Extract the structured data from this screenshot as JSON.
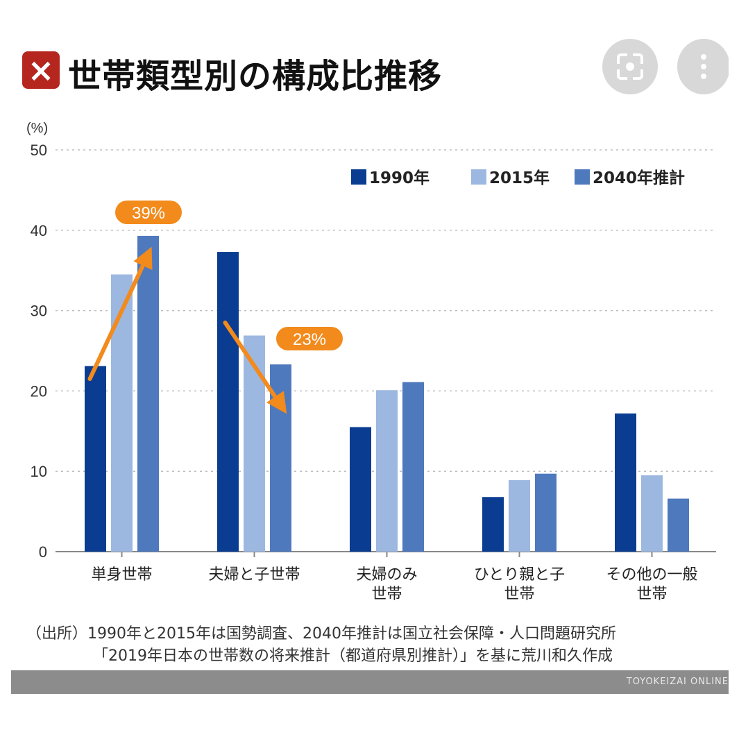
{
  "header": {
    "title": "世帯類型別の構成比推移",
    "close_icon": "close-x-icon",
    "lens_icon": "lens-scan-icon",
    "more_icon": "more-vertical-icon"
  },
  "chart_data": {
    "type": "bar",
    "title": "世帯類型別の構成比推移",
    "ylabel": "(%)",
    "ylim": [
      0,
      50
    ],
    "yticks": [
      0,
      10,
      20,
      30,
      40,
      50
    ],
    "grid": true,
    "legend_position": "top-right",
    "categories": [
      [
        "単身世帯"
      ],
      [
        "夫婦と子世帯"
      ],
      [
        "夫婦のみ",
        "世帯"
      ],
      [
        "ひとり親と子",
        "世帯"
      ],
      [
        "その他の一般",
        "世帯"
      ]
    ],
    "series": [
      {
        "name": "1990年",
        "color": "#0a3d91",
        "values": [
          23.1,
          37.3,
          15.5,
          6.8,
          17.2
        ]
      },
      {
        "name": "2015年",
        "color": "#9db8e0",
        "values": [
          34.5,
          26.9,
          20.1,
          8.9,
          9.5
        ]
      },
      {
        "name": "2040年推計",
        "color": "#4f79bd",
        "values": [
          39.3,
          23.3,
          21.1,
          9.7,
          6.6
        ]
      }
    ],
    "annotations": [
      {
        "text": "39%",
        "category": 0,
        "from_value": 21.5,
        "to_value": 37.0,
        "arrow": "up"
      },
      {
        "text": "23%",
        "category": 1,
        "from_value": 28.5,
        "to_value": 18.0,
        "arrow": "down"
      }
    ],
    "annotation_color": "#f28a1c"
  },
  "source": {
    "line1": "（出所）1990年と2015年は国勢調査、2040年推計は国立社会保障・人口問題研究所",
    "line2": "「2019年日本の世帯数の将来推計（都道府県別推計）」を基に荒川和久作成"
  },
  "footer": {
    "brand": "TOYOKEIZAI ONLINE"
  }
}
